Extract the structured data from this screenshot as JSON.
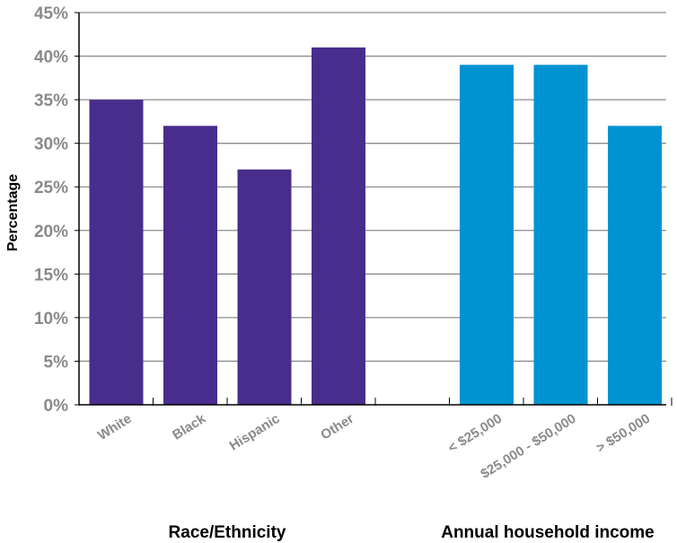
{
  "chart_data": {
    "type": "bar",
    "ylabel": "Percentage",
    "ylim": [
      0,
      45
    ],
    "yticks": [
      "0%",
      "5%",
      "10%",
      "15%",
      "20%",
      "25%",
      "30%",
      "35%",
      "40%",
      "45%"
    ],
    "grid": true,
    "groups": [
      {
        "label": "Race/Ethnicity",
        "color": "#482d8c",
        "categories": [
          "White",
          "Black",
          "Hispanic",
          "Other"
        ],
        "values": [
          35,
          32,
          27,
          41
        ]
      },
      {
        "label": "Annual household income",
        "color": "#0093d1",
        "categories": [
          "< $25,000",
          "$25,000 - $50,000",
          "> $50,000"
        ],
        "values": [
          39,
          39,
          32
        ]
      }
    ]
  }
}
